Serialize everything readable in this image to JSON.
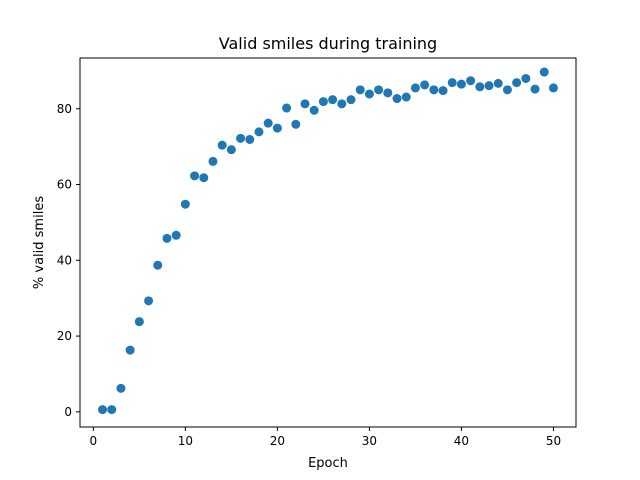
{
  "chart_data": {
    "type": "scatter",
    "title": "Valid smiles during training",
    "xlabel": "Epoch",
    "ylabel": "% valid smiles",
    "xlim": [
      -1.45,
      52.45
    ],
    "ylim": [
      -4.0,
      93.4
    ],
    "xticks": [
      0,
      10,
      20,
      30,
      40,
      50
    ],
    "yticks": [
      0,
      20,
      40,
      60,
      80
    ],
    "grid": false,
    "marker_color": "#1f77b4",
    "points": [
      {
        "x": 1,
        "y": 0.6
      },
      {
        "x": 2,
        "y": 0.6
      },
      {
        "x": 3,
        "y": 6.2
      },
      {
        "x": 4,
        "y": 16.3
      },
      {
        "x": 5,
        "y": 23.8
      },
      {
        "x": 6,
        "y": 29.3
      },
      {
        "x": 7,
        "y": 38.7
      },
      {
        "x": 8,
        "y": 45.8
      },
      {
        "x": 9,
        "y": 46.6
      },
      {
        "x": 10,
        "y": 54.8
      },
      {
        "x": 11,
        "y": 62.3
      },
      {
        "x": 12,
        "y": 61.8
      },
      {
        "x": 13,
        "y": 66.1
      },
      {
        "x": 14,
        "y": 70.4
      },
      {
        "x": 15,
        "y": 69.2
      },
      {
        "x": 16,
        "y": 72.2
      },
      {
        "x": 17,
        "y": 71.9
      },
      {
        "x": 18,
        "y": 73.9
      },
      {
        "x": 19,
        "y": 76.2
      },
      {
        "x": 20,
        "y": 74.9
      },
      {
        "x": 21,
        "y": 80.2
      },
      {
        "x": 22,
        "y": 75.9
      },
      {
        "x": 23,
        "y": 81.3
      },
      {
        "x": 24,
        "y": 79.6
      },
      {
        "x": 25,
        "y": 81.9
      },
      {
        "x": 26,
        "y": 82.4
      },
      {
        "x": 27,
        "y": 81.3
      },
      {
        "x": 28,
        "y": 82.4
      },
      {
        "x": 29,
        "y": 85.0
      },
      {
        "x": 30,
        "y": 83.9
      },
      {
        "x": 31,
        "y": 85.0
      },
      {
        "x": 32,
        "y": 84.2
      },
      {
        "x": 33,
        "y": 82.7
      },
      {
        "x": 34,
        "y": 83.1
      },
      {
        "x": 35,
        "y": 85.5
      },
      {
        "x": 36,
        "y": 86.3
      },
      {
        "x": 37,
        "y": 85.0
      },
      {
        "x": 38,
        "y": 84.8
      },
      {
        "x": 39,
        "y": 86.9
      },
      {
        "x": 40,
        "y": 86.5
      },
      {
        "x": 41,
        "y": 87.4
      },
      {
        "x": 42,
        "y": 85.8
      },
      {
        "x": 43,
        "y": 86.1
      },
      {
        "x": 44,
        "y": 86.7
      },
      {
        "x": 45,
        "y": 85.0
      },
      {
        "x": 46,
        "y": 86.9
      },
      {
        "x": 47,
        "y": 88.0
      },
      {
        "x": 48,
        "y": 85.2
      },
      {
        "x": 49,
        "y": 89.7
      },
      {
        "x": 50,
        "y": 85.5
      }
    ]
  }
}
